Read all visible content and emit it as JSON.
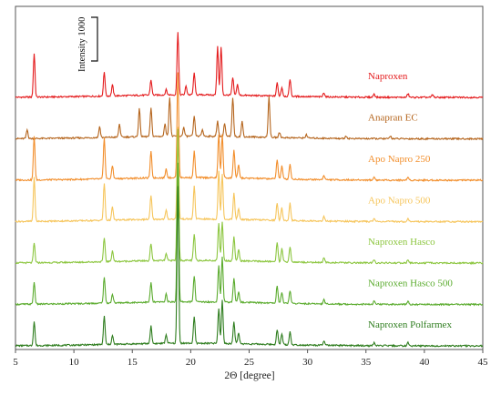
{
  "chart_data": {
    "type": "line",
    "title": "",
    "xlabel": "2Θ [degree]",
    "ylabel": "",
    "xlim": [
      5,
      45
    ],
    "x_ticks": [
      5,
      10,
      15,
      20,
      25,
      30,
      35,
      40,
      45
    ],
    "grid": false,
    "legend": "inline labels at right of each trace",
    "scale_bar": {
      "label": "Intensity 1000",
      "value": 1000
    },
    "series": [
      {
        "name": "Naproxen",
        "color": "#e41a1c",
        "offset": 6.0,
        "peaks": [
          [
            6.6,
            1.0
          ],
          [
            12.6,
            0.55
          ],
          [
            13.3,
            0.25
          ],
          [
            16.6,
            0.35
          ],
          [
            17.9,
            0.12
          ],
          [
            18.9,
            1.45
          ],
          [
            19.6,
            0.2
          ],
          [
            20.3,
            0.5
          ],
          [
            22.3,
            1.1
          ],
          [
            22.6,
            1.1
          ],
          [
            23.6,
            0.4
          ],
          [
            24.0,
            0.25
          ],
          [
            27.4,
            0.3
          ],
          [
            27.8,
            0.2
          ],
          [
            28.5,
            0.4
          ],
          [
            31.4,
            0.1
          ],
          [
            35.7,
            0.08
          ],
          [
            38.6,
            0.08
          ],
          [
            40.7,
            0.06
          ]
        ]
      },
      {
        "name": "Anapran EC",
        "color": "#b5651d",
        "offset": 5.0,
        "peaks": [
          [
            6.0,
            0.2
          ],
          [
            12.2,
            0.25
          ],
          [
            13.9,
            0.3
          ],
          [
            15.6,
            0.65
          ],
          [
            16.6,
            0.65
          ],
          [
            17.8,
            0.3
          ],
          [
            18.2,
            0.9
          ],
          [
            19.4,
            0.2
          ],
          [
            20.3,
            0.45
          ],
          [
            21.0,
            0.15
          ],
          [
            22.3,
            0.35
          ],
          [
            22.9,
            0.3
          ],
          [
            23.6,
            0.9
          ],
          [
            24.4,
            0.35
          ],
          [
            26.7,
            0.95
          ],
          [
            27.6,
            0.12
          ],
          [
            29.9,
            0.08
          ],
          [
            33.3,
            0.06
          ],
          [
            37.1,
            0.06
          ]
        ]
      },
      {
        "name": "Apo Napro 250",
        "color": "#f28e2b",
        "offset": 4.0,
        "peaks": [
          [
            6.6,
            1.0
          ],
          [
            12.6,
            0.95
          ],
          [
            13.3,
            0.3
          ],
          [
            16.6,
            0.6
          ],
          [
            17.9,
            0.2
          ],
          [
            18.9,
            2.4
          ],
          [
            20.3,
            0.6
          ],
          [
            22.4,
            1.0
          ],
          [
            22.7,
            1.0
          ],
          [
            23.7,
            0.65
          ],
          [
            24.1,
            0.3
          ],
          [
            27.4,
            0.45
          ],
          [
            27.8,
            0.3
          ],
          [
            28.5,
            0.35
          ],
          [
            31.4,
            0.1
          ],
          [
            35.7,
            0.07
          ],
          [
            38.6,
            0.07
          ]
        ]
      },
      {
        "name": "Apo Napro 500",
        "color": "#f6c55b",
        "offset": 3.0,
        "peaks": [
          [
            6.6,
            1.0
          ],
          [
            12.6,
            0.85
          ],
          [
            13.3,
            0.3
          ],
          [
            16.6,
            0.55
          ],
          [
            17.9,
            0.2
          ],
          [
            18.9,
            2.1
          ],
          [
            20.3,
            0.75
          ],
          [
            22.4,
            1.1
          ],
          [
            22.7,
            1.05
          ],
          [
            23.7,
            0.6
          ],
          [
            24.1,
            0.25
          ],
          [
            27.4,
            0.4
          ],
          [
            27.8,
            0.28
          ],
          [
            28.5,
            0.4
          ],
          [
            31.4,
            0.1
          ],
          [
            35.7,
            0.07
          ],
          [
            38.6,
            0.07
          ]
        ]
      },
      {
        "name": "Naproxen Hasco",
        "color": "#8cc63f",
        "offset": 2.0,
        "peaks": [
          [
            6.6,
            0.45
          ],
          [
            12.6,
            0.55
          ],
          [
            13.3,
            0.25
          ],
          [
            16.6,
            0.4
          ],
          [
            17.9,
            0.15
          ],
          [
            18.9,
            3.0
          ],
          [
            20.3,
            0.6
          ],
          [
            22.4,
            0.85
          ],
          [
            22.7,
            0.9
          ],
          [
            23.7,
            0.55
          ],
          [
            24.1,
            0.25
          ],
          [
            27.4,
            0.45
          ],
          [
            27.8,
            0.3
          ],
          [
            28.5,
            0.35
          ],
          [
            31.4,
            0.1
          ],
          [
            35.7,
            0.07
          ],
          [
            38.6,
            0.07
          ]
        ]
      },
      {
        "name": "Naproxen Hasco 500",
        "color": "#5aab2d",
        "offset": 1.0,
        "peaks": [
          [
            6.6,
            0.5
          ],
          [
            12.6,
            0.6
          ],
          [
            13.3,
            0.2
          ],
          [
            16.6,
            0.45
          ],
          [
            17.9,
            0.18
          ],
          [
            18.9,
            3.2
          ],
          [
            20.3,
            0.6
          ],
          [
            22.4,
            0.85
          ],
          [
            22.7,
            1.05
          ],
          [
            23.7,
            0.55
          ],
          [
            24.1,
            0.25
          ],
          [
            27.4,
            0.4
          ],
          [
            27.8,
            0.25
          ],
          [
            28.5,
            0.3
          ],
          [
            31.4,
            0.1
          ],
          [
            35.7,
            0.07
          ],
          [
            38.6,
            0.07
          ]
        ]
      },
      {
        "name": "Naproxen Polfarmex",
        "color": "#2e7d1e",
        "offset": 0.0,
        "peaks": [
          [
            6.6,
            0.55
          ],
          [
            12.6,
            0.65
          ],
          [
            13.3,
            0.2
          ],
          [
            16.6,
            0.4
          ],
          [
            17.9,
            0.2
          ],
          [
            18.9,
            3.6
          ],
          [
            20.3,
            0.6
          ],
          [
            22.4,
            0.8
          ],
          [
            22.7,
            1.0
          ],
          [
            23.7,
            0.5
          ],
          [
            24.1,
            0.25
          ],
          [
            27.4,
            0.35
          ],
          [
            27.8,
            0.25
          ],
          [
            28.5,
            0.3
          ],
          [
            31.4,
            0.1
          ],
          [
            35.7,
            0.07
          ],
          [
            38.6,
            0.07
          ]
        ]
      }
    ]
  }
}
